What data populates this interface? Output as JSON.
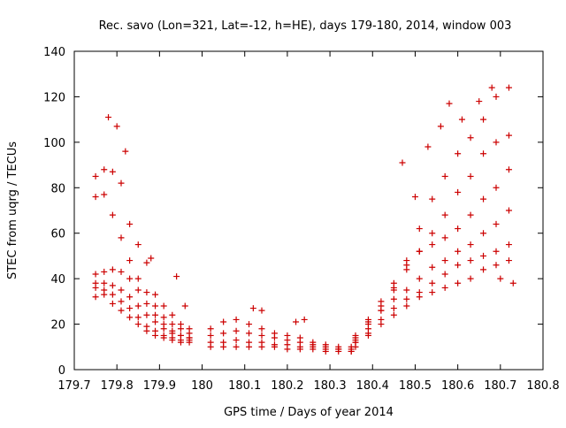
{
  "chart_data": {
    "type": "scatter",
    "title": "Rec. savo (Lon=321, Lat=-12, h=HE), days 179-180, 2014, window 003",
    "xlabel": "GPS time / Days of year 2014",
    "ylabel": "STEC from uqrg / TECUs",
    "xlim": [
      179.7,
      180.8
    ],
    "ylim": [
      0,
      140
    ],
    "x_ticks": [
      "179.7",
      "179.8",
      "179.9",
      "180",
      "180.1",
      "180.2",
      "180.3",
      "180.4",
      "180.5",
      "180.6",
      "180.7",
      "180.8"
    ],
    "y_ticks": [
      "0",
      "20",
      "40",
      "60",
      "80",
      "100",
      "120",
      "140"
    ],
    "grid": false,
    "marker": "plus",
    "series": [
      {
        "color": "#cc0000",
        "tracks": [
          {
            "x": [
              179.75,
              179.77,
              179.79,
              179.81,
              179.83,
              179.85,
              179.87,
              179.89,
              179.91,
              179.93,
              179.95,
              179.97
            ],
            "y": [
              85,
              88,
              87,
              82,
              64,
              55,
              47,
              33,
              28,
              24,
              20,
              18
            ]
          },
          {
            "x": [
              179.75,
              179.77,
              179.79,
              179.81,
              179.83,
              179.85,
              179.87,
              179.89,
              179.91,
              179.93,
              179.95,
              179.97
            ],
            "y": [
              76,
              77,
              68,
              58,
              48,
              40,
              34,
              28,
              23,
              20,
              18,
              16
            ]
          },
          {
            "x": [
              179.75,
              179.77,
              179.79,
              179.81,
              179.83,
              179.85,
              179.87,
              179.89,
              179.91,
              179.93,
              179.95,
              179.97
            ],
            "y": [
              42,
              43,
              44,
              43,
              40,
              35,
              29,
              24,
              20,
              17,
              15,
              14
            ]
          },
          {
            "x": [
              179.75,
              179.77,
              179.79,
              179.81,
              179.83,
              179.85,
              179.87,
              179.89,
              179.91,
              179.93,
              179.95,
              179.97
            ],
            "y": [
              38,
              38,
              37,
              35,
              32,
              28,
              24,
              21,
              18,
              16,
              15,
              14
            ]
          },
          {
            "x": [
              179.75,
              179.77,
              179.79,
              179.81,
              179.83,
              179.85,
              179.87,
              179.89,
              179.91,
              179.93,
              179.95,
              179.97
            ],
            "y": [
              36,
              35,
              33,
              30,
              27,
              23,
              19,
              17,
              15,
              14,
              13,
              13
            ]
          },
          {
            "x": [
              179.75,
              179.77,
              179.79,
              179.81,
              179.83,
              179.85,
              179.87,
              179.89,
              179.91,
              179.93,
              179.95,
              179.97
            ],
            "y": [
              32,
              33,
              29,
              26,
              23,
              20,
              17,
              15,
              14,
              13,
              12,
              12
            ]
          },
          {
            "x": [
              179.78,
              179.8,
              179.82,
              179.88,
              179.94,
              179.96
            ],
            "y": [
              111,
              107,
              96,
              49,
              41,
              28
            ]
          },
          {
            "x": [
              180.02,
              180.05,
              180.08,
              180.11,
              180.14,
              180.17,
              180.2,
              180.23,
              180.26,
              180.29,
              180.32,
              180.35
            ],
            "y": [
              18,
              21,
              22,
              20,
              18,
              16,
              15,
              14,
              12,
              11,
              10,
              10
            ]
          },
          {
            "x": [
              180.02,
              180.05,
              180.08,
              180.11,
              180.14,
              180.17,
              180.2,
              180.23,
              180.26,
              180.29,
              180.32,
              180.35
            ],
            "y": [
              15,
              16,
              17,
              16,
              15,
              14,
              13,
              12,
              11,
              10,
              9,
              9
            ]
          },
          {
            "x": [
              180.02,
              180.05,
              180.08,
              180.11,
              180.14,
              180.17,
              180.2,
              180.23,
              180.26,
              180.29,
              180.32,
              180.35
            ],
            "y": [
              12,
              12,
              13,
              12,
              12,
              11,
              11,
              10,
              10,
              9,
              9,
              8
            ]
          },
          {
            "x": [
              180.02,
              180.05,
              180.08,
              180.11,
              180.14,
              180.17,
              180.2,
              180.23,
              180.26,
              180.29,
              180.32,
              180.35
            ],
            "y": [
              10,
              10,
              10,
              10,
              10,
              10,
              9,
              9,
              9,
              8,
              8,
              8
            ]
          },
          {
            "x": [
              180.12,
              180.14,
              180.22,
              180.24
            ],
            "y": [
              27,
              26,
              21,
              22
            ]
          },
          {
            "x": [
              180.36,
              180.39,
              180.42,
              180.45,
              180.48,
              180.51,
              180.54,
              180.57,
              180.6,
              180.63,
              180.66,
              180.69,
              180.72
            ],
            "y": [
              12,
              18,
              26,
              35,
              48,
              62,
              75,
              85,
              95,
              102,
              110,
              120,
              124
            ]
          },
          {
            "x": [
              180.36,
              180.39,
              180.42,
              180.45,
              180.48,
              180.51,
              180.54,
              180.57,
              180.6,
              180.63,
              180.66,
              180.69,
              180.72
            ],
            "y": [
              13,
              20,
              28,
              36,
              44,
              52,
              60,
              68,
              78,
              85,
              95,
              100,
              103
            ]
          },
          {
            "x": [
              180.36,
              180.39,
              180.42,
              180.45,
              180.48,
              180.51,
              180.54,
              180.57,
              180.6,
              180.63,
              180.66,
              180.69,
              180.72
            ],
            "y": [
              14,
              22,
              30,
              38,
              46,
              52,
              55,
              58,
              62,
              68,
              75,
              80,
              88
            ]
          },
          {
            "x": [
              180.36,
              180.39,
              180.42,
              180.45,
              180.48,
              180.51,
              180.54,
              180.57,
              180.6,
              180.63,
              180.66,
              180.69,
              180.72
            ],
            "y": [
              15,
              21,
              26,
              31,
              35,
              40,
              45,
              48,
              52,
              55,
              60,
              64,
              70
            ]
          },
          {
            "x": [
              180.36,
              180.39,
              180.42,
              180.45,
              180.48,
              180.51,
              180.54,
              180.57,
              180.6,
              180.63,
              180.66,
              180.69,
              180.72
            ],
            "y": [
              12,
              16,
              22,
              27,
              31,
              34,
              38,
              42,
              46,
              48,
              50,
              52,
              55
            ]
          },
          {
            "x": [
              180.36,
              180.39,
              180.42,
              180.45,
              180.48,
              180.51,
              180.54,
              180.57,
              180.6,
              180.63,
              180.66,
              180.69,
              180.72
            ],
            "y": [
              10,
              15,
              20,
              24,
              28,
              32,
              34,
              36,
              38,
              40,
              44,
              46,
              48
            ]
          },
          {
            "x": [
              180.47,
              180.5,
              180.53,
              180.56,
              180.58,
              180.61,
              180.65,
              180.68,
              180.7,
              180.73
            ],
            "y": [
              91,
              76,
              98,
              107,
              117,
              110,
              118,
              124,
              40,
              38
            ]
          }
        ]
      }
    ]
  }
}
